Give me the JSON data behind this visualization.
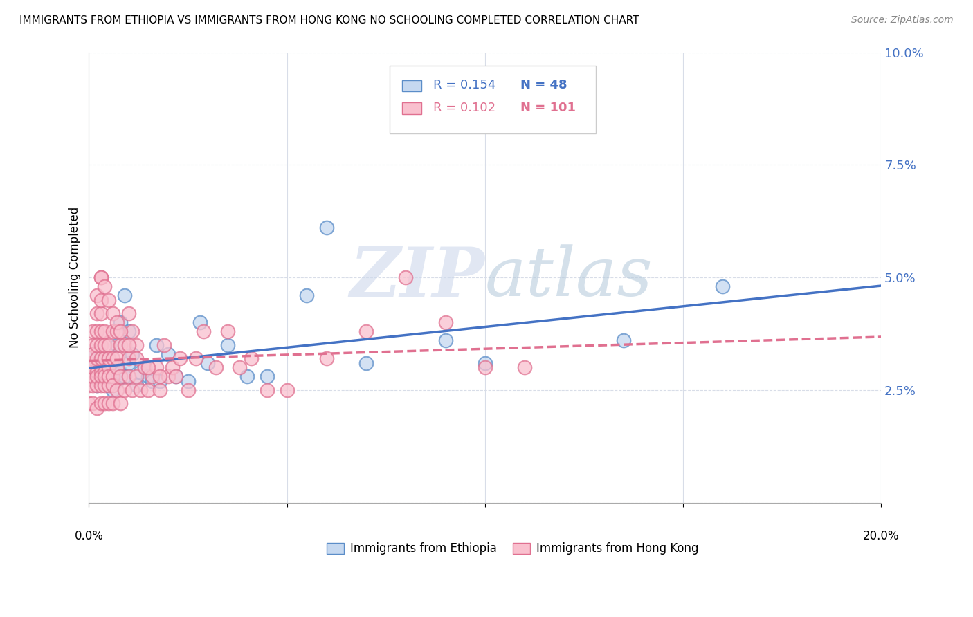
{
  "title": "IMMIGRANTS FROM ETHIOPIA VS IMMIGRANTS FROM HONG KONG NO SCHOOLING COMPLETED CORRELATION CHART",
  "source": "Source: ZipAtlas.com",
  "ylabel": "No Schooling Completed",
  "xlim": [
    0.0,
    0.2
  ],
  "ylim": [
    0.0,
    0.1
  ],
  "yticks": [
    0.0,
    0.025,
    0.05,
    0.075,
    0.1
  ],
  "ytick_labels": [
    "",
    "2.5%",
    "5.0%",
    "7.5%",
    "10.0%"
  ],
  "legend_r1": "R = 0.154",
  "legend_n1": "N = 48",
  "legend_r2": "R = 0.102",
  "legend_n2": "N = 101",
  "label_ethiopia": "Immigrants from Ethiopia",
  "label_hongkong": "Immigrants from Hong Kong",
  "color_ethiopia_fill": "#c5d8f0",
  "color_ethiopia_edge": "#5b8dc8",
  "color_hongkong_fill": "#f9c0ce",
  "color_hongkong_edge": "#e07090",
  "color_ethiopia_line": "#4472c4",
  "color_hongkong_line": "#e07090",
  "watermark_zip": "ZIP",
  "watermark_atlas": "atlas",
  "watermark_color_zip": "#c8d4e8",
  "watermark_color_atlas": "#b0c8e0",
  "ethiopia_x": [
    0.001,
    0.001,
    0.001,
    0.002,
    0.002,
    0.002,
    0.003,
    0.003,
    0.003,
    0.004,
    0.004,
    0.005,
    0.005,
    0.005,
    0.006,
    0.006,
    0.007,
    0.007,
    0.007,
    0.008,
    0.008,
    0.009,
    0.009,
    0.01,
    0.01,
    0.011,
    0.012,
    0.013,
    0.014,
    0.015,
    0.016,
    0.017,
    0.018,
    0.02,
    0.022,
    0.025,
    0.028,
    0.03,
    0.035,
    0.04,
    0.045,
    0.055,
    0.06,
    0.07,
    0.09,
    0.1,
    0.135,
    0.16
  ],
  "ethiopia_y": [
    0.033,
    0.03,
    0.028,
    0.031,
    0.028,
    0.026,
    0.03,
    0.033,
    0.027,
    0.03,
    0.028,
    0.026,
    0.03,
    0.028,
    0.025,
    0.029,
    0.027,
    0.03,
    0.035,
    0.029,
    0.04,
    0.028,
    0.046,
    0.031,
    0.038,
    0.033,
    0.026,
    0.029,
    0.03,
    0.028,
    0.027,
    0.035,
    0.027,
    0.033,
    0.028,
    0.027,
    0.04,
    0.031,
    0.035,
    0.028,
    0.028,
    0.046,
    0.061,
    0.031,
    0.036,
    0.031,
    0.036,
    0.048
  ],
  "hongkong_x": [
    0.0,
    0.0,
    0.0,
    0.0,
    0.001,
    0.001,
    0.001,
    0.001,
    0.001,
    0.001,
    0.001,
    0.001,
    0.002,
    0.002,
    0.002,
    0.002,
    0.002,
    0.002,
    0.002,
    0.002,
    0.002,
    0.003,
    0.003,
    0.003,
    0.003,
    0.003,
    0.003,
    0.003,
    0.003,
    0.003,
    0.004,
    0.004,
    0.004,
    0.004,
    0.004,
    0.004,
    0.004,
    0.005,
    0.005,
    0.005,
    0.005,
    0.005,
    0.005,
    0.006,
    0.006,
    0.006,
    0.006,
    0.006,
    0.007,
    0.007,
    0.007,
    0.007,
    0.008,
    0.008,
    0.008,
    0.009,
    0.009,
    0.01,
    0.01,
    0.01,
    0.011,
    0.011,
    0.012,
    0.012,
    0.013,
    0.014,
    0.015,
    0.016,
    0.017,
    0.018,
    0.019,
    0.02,
    0.021,
    0.022,
    0.023,
    0.025,
    0.027,
    0.029,
    0.032,
    0.035,
    0.038,
    0.041,
    0.045,
    0.05,
    0.06,
    0.07,
    0.08,
    0.09,
    0.1,
    0.11,
    0.003,
    0.003,
    0.004,
    0.005,
    0.006,
    0.007,
    0.008,
    0.01,
    0.012,
    0.015,
    0.018
  ],
  "hongkong_y": [
    0.026,
    0.031,
    0.022,
    0.028,
    0.022,
    0.026,
    0.029,
    0.035,
    0.038,
    0.033,
    0.028,
    0.03,
    0.021,
    0.026,
    0.029,
    0.032,
    0.038,
    0.042,
    0.046,
    0.035,
    0.028,
    0.022,
    0.026,
    0.029,
    0.032,
    0.038,
    0.042,
    0.05,
    0.035,
    0.028,
    0.022,
    0.026,
    0.029,
    0.032,
    0.038,
    0.035,
    0.028,
    0.022,
    0.026,
    0.03,
    0.035,
    0.032,
    0.028,
    0.022,
    0.028,
    0.038,
    0.032,
    0.026,
    0.025,
    0.03,
    0.038,
    0.032,
    0.022,
    0.028,
    0.035,
    0.025,
    0.035,
    0.028,
    0.032,
    0.042,
    0.025,
    0.038,
    0.028,
    0.035,
    0.025,
    0.03,
    0.025,
    0.028,
    0.03,
    0.025,
    0.035,
    0.028,
    0.03,
    0.028,
    0.032,
    0.025,
    0.032,
    0.038,
    0.03,
    0.038,
    0.03,
    0.032,
    0.025,
    0.025,
    0.032,
    0.038,
    0.05,
    0.04,
    0.03,
    0.03,
    0.045,
    0.05,
    0.048,
    0.045,
    0.042,
    0.04,
    0.038,
    0.035,
    0.032,
    0.03,
    0.028
  ]
}
